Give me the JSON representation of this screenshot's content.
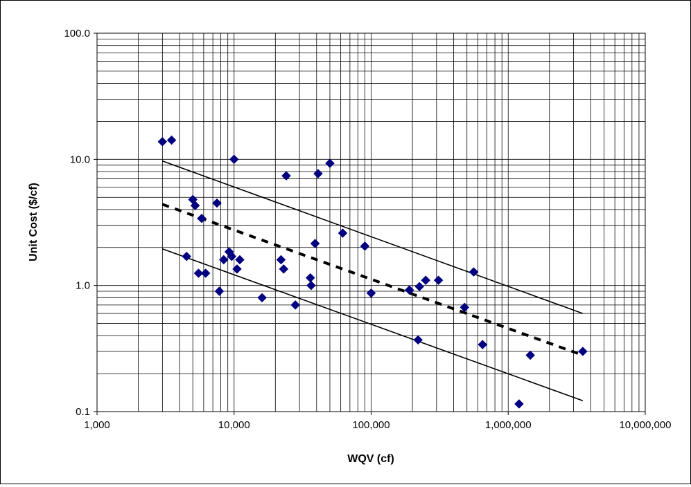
{
  "chart_data": {
    "type": "scatter",
    "title": "",
    "xlabel": "WQV (cf)",
    "ylabel": "Unit Cost ($/cf)",
    "xscale": "log",
    "yscale": "log",
    "xlim": [
      1000,
      10000000
    ],
    "ylim": [
      0.1,
      100
    ],
    "grid": true,
    "legend": "none",
    "x_tick_labels": [
      "1,000",
      "10,000",
      "100,000",
      "1,000,000",
      "10,000,000"
    ],
    "y_tick_labels": [
      "0.1",
      "1.0",
      "10.0",
      "100.0"
    ],
    "marker_color": "#000080",
    "series": [
      {
        "points": [
          [
            3000,
            13.8
          ],
          [
            3500,
            14.2
          ],
          [
            4500,
            1.7
          ],
          [
            5000,
            4.8
          ],
          [
            5200,
            4.3
          ],
          [
            5500,
            1.25
          ],
          [
            5800,
            3.4
          ],
          [
            6200,
            1.25
          ],
          [
            7500,
            4.5
          ],
          [
            7800,
            0.9
          ],
          [
            8400,
            1.6
          ],
          [
            9200,
            1.85
          ],
          [
            9600,
            1.7
          ],
          [
            10000,
            10.0
          ],
          [
            10500,
            1.35
          ],
          [
            11000,
            1.6
          ],
          [
            16000,
            0.8
          ],
          [
            22000,
            1.6
          ],
          [
            23000,
            1.35
          ],
          [
            24000,
            7.4
          ],
          [
            28000,
            0.7
          ],
          [
            36000,
            1.15
          ],
          [
            36500,
            1.0
          ],
          [
            39000,
            2.15
          ],
          [
            41000,
            7.7
          ],
          [
            50000,
            9.3
          ],
          [
            62000,
            2.6
          ],
          [
            90000,
            2.05
          ],
          [
            100000,
            0.87
          ],
          [
            190000,
            0.92
          ],
          [
            220000,
            0.37
          ],
          [
            225000,
            0.98
          ],
          [
            250000,
            1.1
          ],
          [
            310000,
            1.1
          ],
          [
            480000,
            0.67
          ],
          [
            560000,
            1.28
          ],
          [
            650000,
            0.34
          ],
          [
            1200000,
            0.115
          ],
          [
            1450000,
            0.28
          ],
          [
            3500000,
            0.3
          ]
        ]
      }
    ],
    "lines": [
      {
        "style": "solid",
        "x": [
          3000,
          3500000
        ],
        "y": [
          9.7,
          0.6
        ]
      },
      {
        "style": "dashed",
        "x": [
          3000,
          3500000
        ],
        "y": [
          4.4,
          0.28
        ]
      },
      {
        "style": "solid",
        "x": [
          3000,
          3500000
        ],
        "y": [
          1.95,
          0.122
        ]
      }
    ]
  }
}
